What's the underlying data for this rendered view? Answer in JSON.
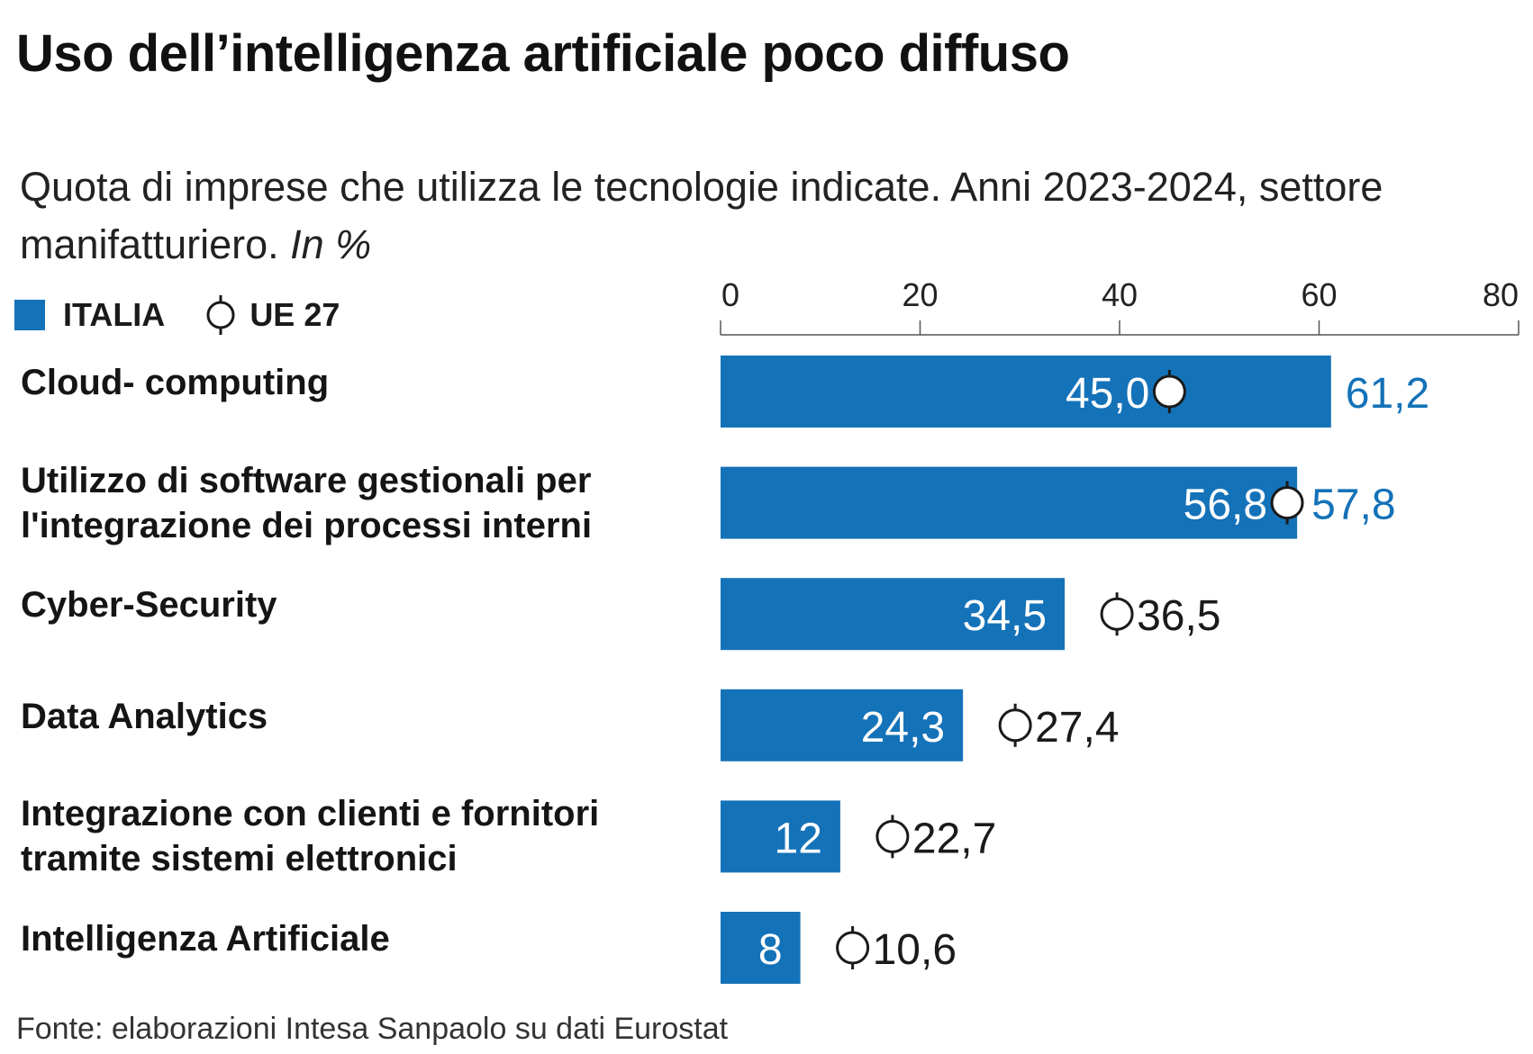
{
  "title": "Uso dell’intelligenza artificiale poco diffuso",
  "subtitle": "Quota di imprese che utilizza le tecnologie indicate. Anni 2023-2024, settore manifatturiero.",
  "subtitle_unit": "In %",
  "legend": {
    "italia": "ITALIA",
    "ue": "UE 27"
  },
  "source": "Fonte: elaborazioni Intesa Sanpaolo su dati Eurostat",
  "colors": {
    "bar": "#1472b8",
    "ue_highlight": "#1472b8",
    "text_dark": "#1a1a1a",
    "axis": "#555555"
  },
  "chart_data": {
    "type": "bar",
    "orientation": "horizontal",
    "xlim": [
      0,
      80
    ],
    "ticks": [
      "0",
      "20",
      "40",
      "60",
      "80"
    ],
    "tick_values": [
      0,
      20,
      40,
      60,
      80
    ],
    "categories": [
      "Cloud- computing",
      "Utilizzo di software gestionali per l'integrazione dei processi interni",
      "Cyber-Security",
      "Data Analytics",
      "Integrazione con clienti e fornitori tramite sistemi elettronici",
      "Intelligenza Artificiale"
    ],
    "category_lines": [
      [
        "Cloud- computing"
      ],
      [
        "Utilizzo di software gestionali per",
        "l'integrazione dei processi interni"
      ],
      [
        "Cyber-Security"
      ],
      [
        "Data Analytics"
      ],
      [
        "Integrazione con clienti e fornitori",
        "tramite sistemi elettronici"
      ],
      [
        "Intelligenza Artificiale"
      ]
    ],
    "series": [
      {
        "name": "ITALIA",
        "values": [
          61.2,
          57.8,
          34.5,
          24.3,
          12,
          8
        ],
        "labels": [
          "61,2",
          "57,8",
          "34,5",
          "24,3",
          "12",
          "8"
        ]
      },
      {
        "name": "UE 27",
        "values": [
          45.0,
          56.8,
          36.5,
          27.4,
          22.7,
          10.6
        ],
        "labels": [
          "45,0",
          "56,8",
          "36,5",
          "27,4",
          "22,7",
          "10,6"
        ]
      }
    ]
  }
}
